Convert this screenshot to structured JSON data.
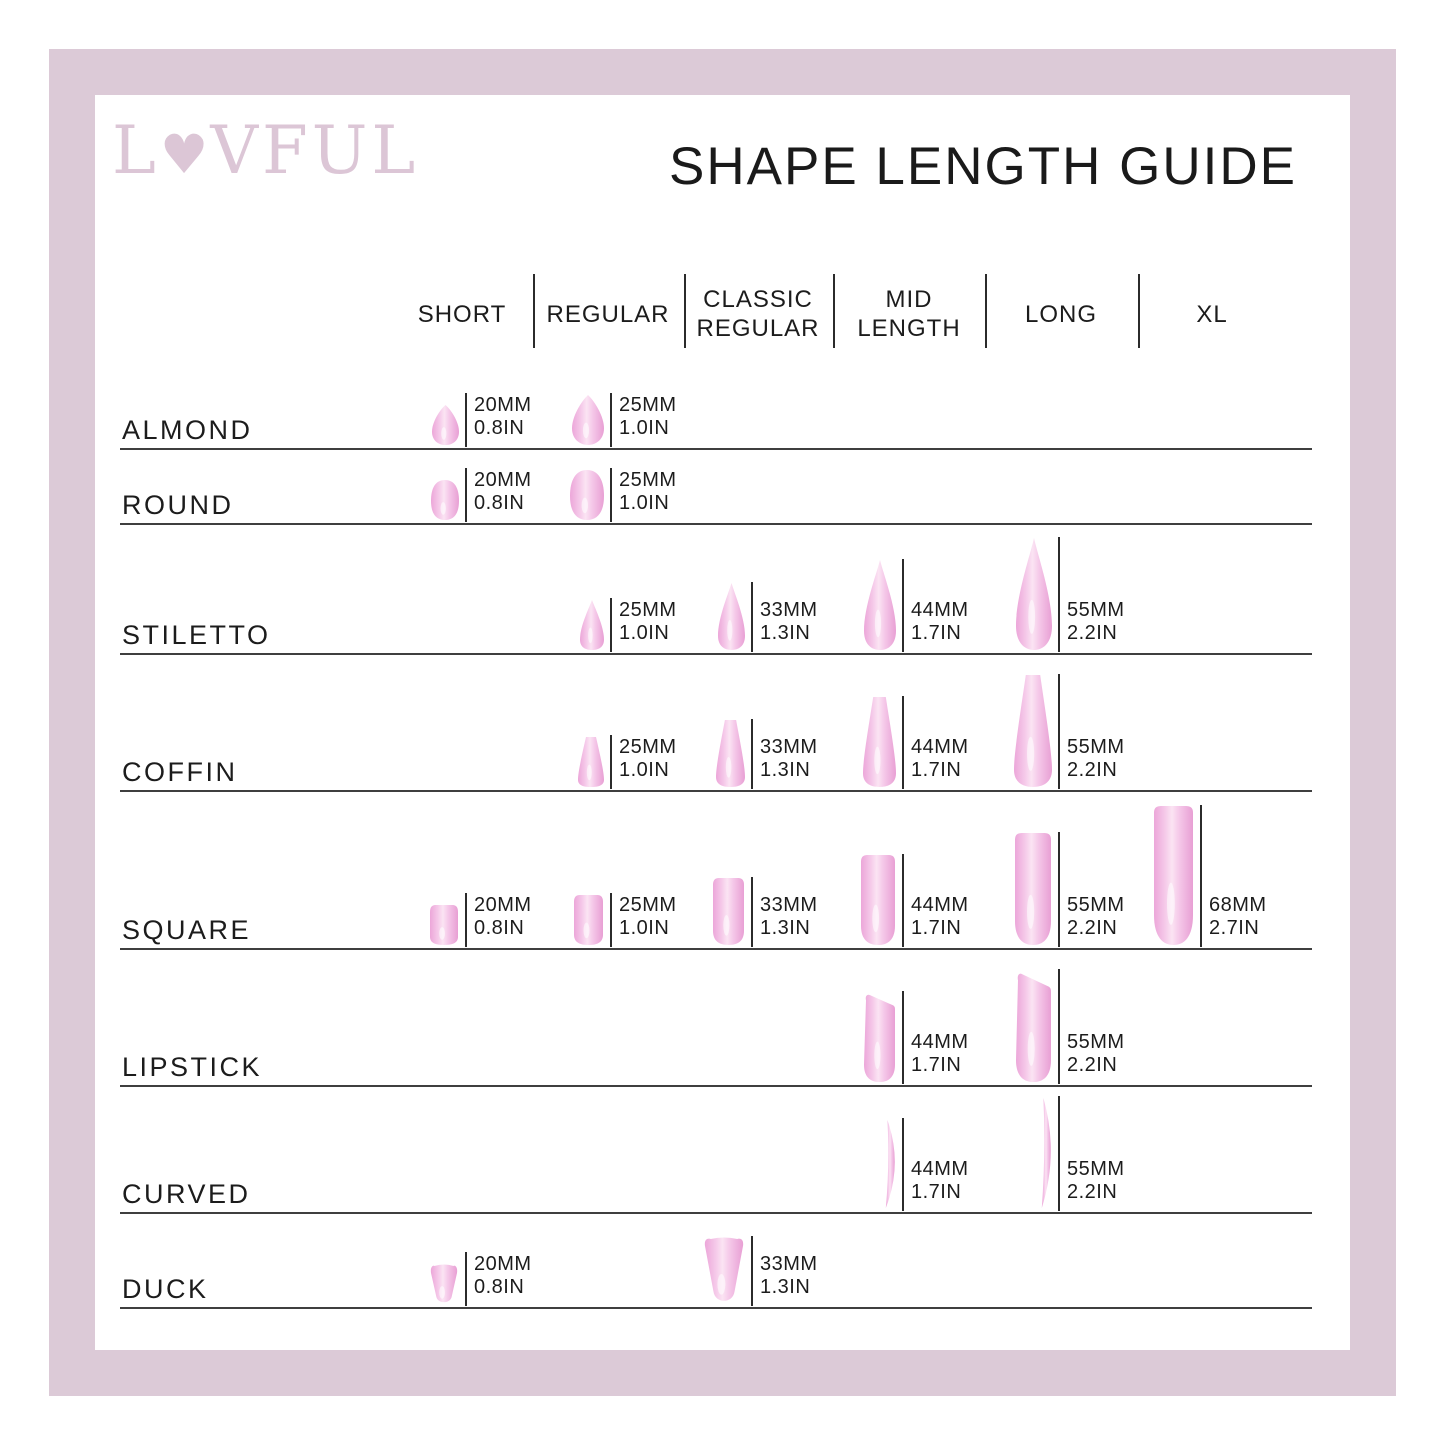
{
  "brand": {
    "name": "LOVFUL",
    "pre": "L",
    "heart_glyph": "♥",
    "post": "VFUL"
  },
  "title": "SHAPE LENGTH GUIDE",
  "columns": [
    {
      "id": "short",
      "label_lines": [
        "SHORT"
      ]
    },
    {
      "id": "regular",
      "label_lines": [
        "REGULAR"
      ]
    },
    {
      "id": "classic-regular",
      "label_lines": [
        "CLASSIC",
        "REGULAR"
      ]
    },
    {
      "id": "mid-length",
      "label_lines": [
        "MID",
        "LENGTH"
      ]
    },
    {
      "id": "long",
      "label_lines": [
        "LONG"
      ]
    },
    {
      "id": "xl",
      "label_lines": [
        "XL"
      ]
    }
  ],
  "rows": [
    {
      "label": "ALMOND",
      "shape": "almond",
      "cells": [
        {
          "column": "SHORT",
          "col": 0,
          "mm": 20,
          "mm_label": "20MM",
          "in_label": "0.8IN"
        },
        {
          "column": "REGULAR",
          "col": 1,
          "mm": 25,
          "mm_label": "25MM",
          "in_label": "1.0IN"
        }
      ]
    },
    {
      "label": "ROUND",
      "shape": "round",
      "cells": [
        {
          "column": "SHORT",
          "col": 0,
          "mm": 20,
          "mm_label": "20MM",
          "in_label": "0.8IN"
        },
        {
          "column": "REGULAR",
          "col": 1,
          "mm": 25,
          "mm_label": "25MM",
          "in_label": "1.0IN"
        }
      ]
    },
    {
      "label": "STILETTO",
      "shape": "stiletto",
      "cells": [
        {
          "column": "REGULAR",
          "col": 1,
          "mm": 25,
          "mm_label": "25MM",
          "in_label": "1.0IN"
        },
        {
          "column": "CLASSIC REGULAR",
          "col": 2,
          "mm": 33,
          "mm_label": "33MM",
          "in_label": "1.3IN"
        },
        {
          "column": "MID LENGTH",
          "col": 3,
          "mm": 44,
          "mm_label": "44MM",
          "in_label": "1.7IN"
        },
        {
          "column": "LONG",
          "col": 4,
          "mm": 55,
          "mm_label": "55MM",
          "in_label": "2.2IN"
        }
      ]
    },
    {
      "label": "COFFIN",
      "shape": "coffin",
      "cells": [
        {
          "column": "REGULAR",
          "col": 1,
          "mm": 25,
          "mm_label": "25MM",
          "in_label": "1.0IN"
        },
        {
          "column": "CLASSIC REGULAR",
          "col": 2,
          "mm": 33,
          "mm_label": "33MM",
          "in_label": "1.3IN"
        },
        {
          "column": "MID LENGTH",
          "col": 3,
          "mm": 44,
          "mm_label": "44MM",
          "in_label": "1.7IN"
        },
        {
          "column": "LONG",
          "col": 4,
          "mm": 55,
          "mm_label": "55MM",
          "in_label": "2.2IN"
        }
      ]
    },
    {
      "label": "SQUARE",
      "shape": "square",
      "cells": [
        {
          "column": "SHORT",
          "col": 0,
          "mm": 20,
          "mm_label": "20MM",
          "in_label": "0.8IN"
        },
        {
          "column": "REGULAR",
          "col": 1,
          "mm": 25,
          "mm_label": "25MM",
          "in_label": "1.0IN"
        },
        {
          "column": "CLASSIC REGULAR",
          "col": 2,
          "mm": 33,
          "mm_label": "33MM",
          "in_label": "1.3IN"
        },
        {
          "column": "MID LENGTH",
          "col": 3,
          "mm": 44,
          "mm_label": "44MM",
          "in_label": "1.7IN"
        },
        {
          "column": "LONG",
          "col": 4,
          "mm": 55,
          "mm_label": "55MM",
          "in_label": "2.2IN"
        },
        {
          "column": "XL",
          "col": 5,
          "mm": 68,
          "mm_label": "68MM",
          "in_label": "2.7IN"
        }
      ]
    },
    {
      "label": "LIPSTICK",
      "shape": "lipstick",
      "cells": [
        {
          "column": "MID LENGTH",
          "col": 3,
          "mm": 44,
          "mm_label": "44MM",
          "in_label": "1.7IN"
        },
        {
          "column": "LONG",
          "col": 4,
          "mm": 55,
          "mm_label": "55MM",
          "in_label": "2.2IN"
        }
      ]
    },
    {
      "label": "CURVED",
      "shape": "curved",
      "cells": [
        {
          "column": "MID LENGTH",
          "col": 3,
          "mm": 44,
          "mm_label": "44MM",
          "in_label": "1.7IN"
        },
        {
          "column": "LONG",
          "col": 4,
          "mm": 55,
          "mm_label": "55MM",
          "in_label": "2.2IN"
        }
      ]
    },
    {
      "label": "DUCK",
      "shape": "duck",
      "cells": [
        {
          "column": "SHORT",
          "col": 0,
          "mm": 20,
          "mm_label": "20MM",
          "in_label": "0.8IN"
        },
        {
          "column": "CLASSIC REGULAR",
          "col": 2,
          "mm": 33,
          "mm_label": "33MM",
          "in_label": "1.3IN"
        }
      ]
    }
  ],
  "colors": {
    "frame_pink": "#dccad7",
    "logo_pink": "#dcc6d6",
    "nail_edge": "#eca6d9",
    "nail_mid": "#f5c9e9",
    "nail_highlight": "#fbe4f3",
    "text_dark": "#1c1c1c"
  }
}
